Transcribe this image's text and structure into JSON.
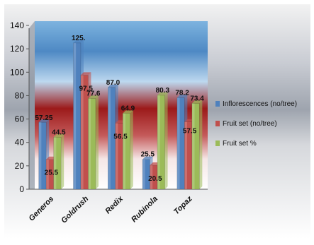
{
  "chart_data": {
    "type": "bar",
    "title": "",
    "xlabel": "",
    "ylabel": "",
    "categories": [
      "Generos",
      "Goldrush",
      "Redix",
      "Rubinola",
      "Topaz"
    ],
    "ylim": [
      0,
      140
    ],
    "yticks": [
      "0",
      "20",
      "40",
      "60",
      "80",
      "100",
      "120",
      "140"
    ],
    "grid": false,
    "legend_position": "right",
    "series": [
      {
        "name": "Inflorescences (no/tree)",
        "color": "#4f81bd",
        "values": [
          57.25,
          125.0,
          87.0,
          25.5,
          78.2
        ],
        "labels": [
          "57.25",
          "125.",
          "87.0",
          "25.5",
          "78.2"
        ]
      },
      {
        "name": "Fruit set (no/tree)",
        "color": "#c0504d",
        "values": [
          25.5,
          97.5,
          56.5,
          20.5,
          57.5
        ],
        "labels": [
          "25.5",
          "97.5",
          "56.5",
          "20.5",
          "57.5"
        ]
      },
      {
        "name": "Fruit set %",
        "color": "#9bbb59",
        "values": [
          44.5,
          77.6,
          64.9,
          80.3,
          73.4
        ],
        "labels": [
          "44.5",
          "77.6",
          "64.9",
          "80.3",
          "73.4"
        ]
      }
    ]
  }
}
